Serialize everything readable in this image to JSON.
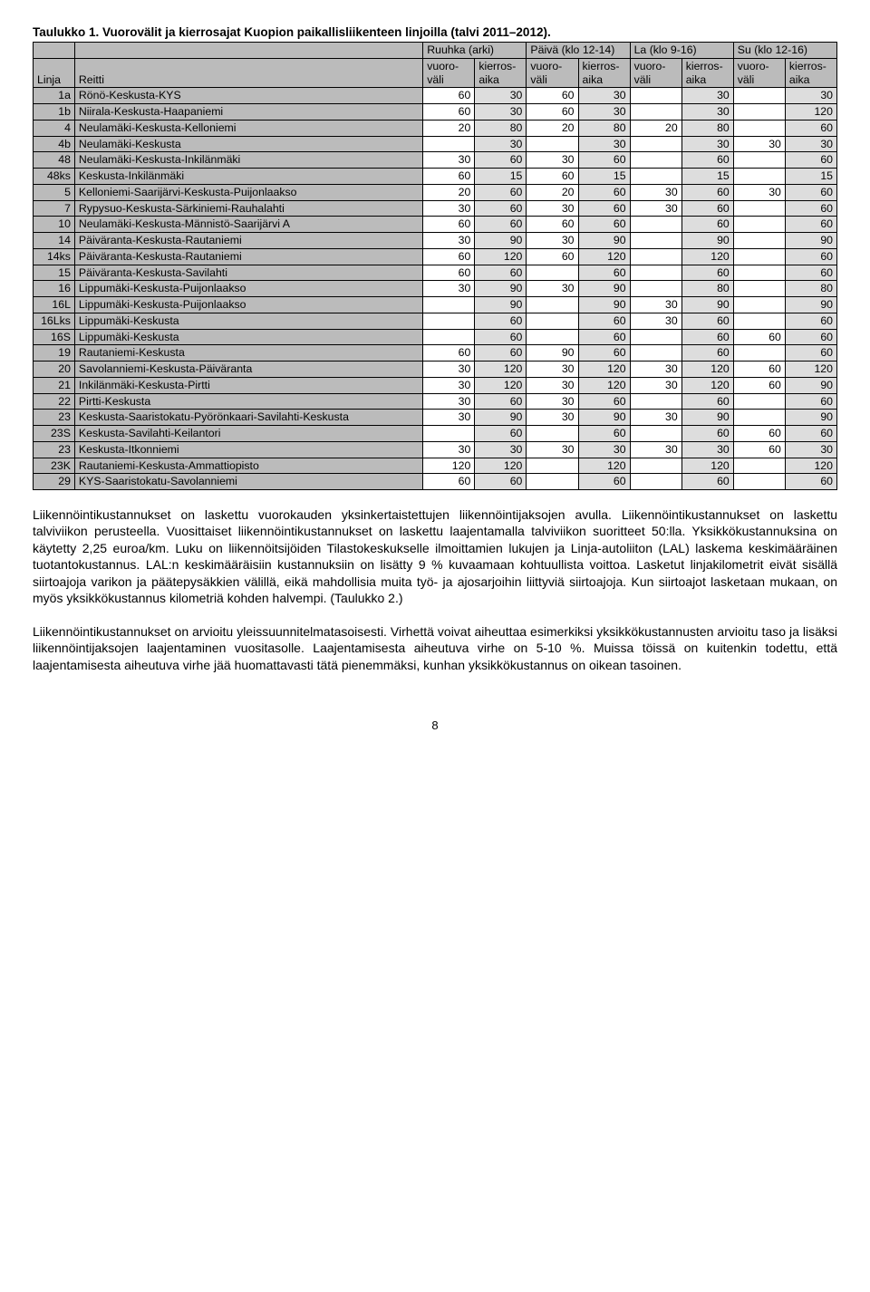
{
  "title": "Taulukko 1. Vuorovälit ja kierrosajat Kuopion paikallisliikenteen linjoilla (talvi 2011–2012).",
  "groupHeaders": [
    "Ruuhka (arki)",
    "Päivä (klo 12-14)",
    "La (klo 9-16)",
    "Su (klo 12-16)"
  ],
  "subHeaders": {
    "linja": "Linja",
    "reitti": "Reitti",
    "vuoro": "vuoro-väli",
    "kierros": "kierros-aika"
  },
  "colors": {
    "headerBg": "#bbbbbb",
    "evenCol": "#dddddd",
    "oddCol": "#ffffff",
    "border": "#000000"
  },
  "rows": [
    {
      "linja": "1a",
      "reitti": "Rönö-Keskusta-KYS",
      "v": [
        60,
        30,
        60,
        30,
        "",
        30,
        "",
        30
      ]
    },
    {
      "linja": "1b",
      "reitti": "Niirala-Keskusta-Haapaniemi",
      "v": [
        60,
        30,
        60,
        30,
        "",
        30,
        "",
        120
      ]
    },
    {
      "linja": "4",
      "reitti": "Neulamäki-Keskusta-Kelloniemi",
      "v": [
        20,
        80,
        20,
        80,
        20,
        80,
        "",
        60
      ]
    },
    {
      "linja": "4b",
      "reitti": "Neulamäki-Keskusta",
      "v": [
        "",
        30,
        "",
        30,
        "",
        30,
        30,
        30
      ]
    },
    {
      "linja": "48",
      "reitti": "Neulamäki-Keskusta-Inkilänmäki",
      "v": [
        30,
        60,
        30,
        60,
        "",
        60,
        "",
        60
      ]
    },
    {
      "linja": "48ks",
      "reitti": "Keskusta-Inkilänmäki",
      "v": [
        60,
        15,
        60,
        15,
        "",
        15,
        "",
        15
      ]
    },
    {
      "linja": "5",
      "reitti": "Kelloniemi-Saarijärvi-Keskusta-Puijonlaakso",
      "v": [
        20,
        60,
        20,
        60,
        30,
        60,
        30,
        60
      ]
    },
    {
      "linja": "7",
      "reitti": "Rypysuo-Keskusta-Särkiniemi-Rauhalahti",
      "v": [
        30,
        60,
        30,
        60,
        30,
        60,
        "",
        60
      ]
    },
    {
      "linja": "10",
      "reitti": "Neulamäki-Keskusta-Männistö-Saarijärvi A",
      "v": [
        60,
        60,
        60,
        60,
        "",
        60,
        "",
        60
      ]
    },
    {
      "linja": "14",
      "reitti": "Päiväranta-Keskusta-Rautaniemi",
      "v": [
        30,
        90,
        30,
        90,
        "",
        90,
        "",
        90
      ]
    },
    {
      "linja": "14ks",
      "reitti": "Päiväranta-Keskusta-Rautaniemi",
      "v": [
        60,
        120,
        60,
        120,
        "",
        120,
        "",
        60
      ]
    },
    {
      "linja": "15",
      "reitti": "Päiväranta-Keskusta-Savilahti",
      "v": [
        60,
        60,
        "",
        60,
        "",
        60,
        "",
        60
      ]
    },
    {
      "linja": "16",
      "reitti": "Lippumäki-Keskusta-Puijonlaakso",
      "v": [
        30,
        90,
        30,
        90,
        "",
        80,
        "",
        80
      ]
    },
    {
      "linja": "16L",
      "reitti": "Lippumäki-Keskusta-Puijonlaakso",
      "v": [
        "",
        90,
        "",
        90,
        30,
        90,
        "",
        90
      ]
    },
    {
      "linja": "16Lks",
      "reitti": "Lippumäki-Keskusta",
      "v": [
        "",
        60,
        "",
        60,
        30,
        60,
        "",
        60
      ]
    },
    {
      "linja": "16S",
      "reitti": "Lippumäki-Keskusta",
      "v": [
        "",
        60,
        "",
        60,
        "",
        60,
        60,
        60
      ]
    },
    {
      "linja": "19",
      "reitti": "Rautaniemi-Keskusta",
      "v": [
        60,
        60,
        90,
        60,
        "",
        60,
        "",
        60
      ]
    },
    {
      "linja": "20",
      "reitti": "Savolanniemi-Keskusta-Päiväranta",
      "v": [
        30,
        120,
        30,
        120,
        30,
        120,
        60,
        120
      ]
    },
    {
      "linja": "21",
      "reitti": "Inkilänmäki-Keskusta-Pirtti",
      "v": [
        30,
        120,
        30,
        120,
        30,
        120,
        60,
        90
      ]
    },
    {
      "linja": "22",
      "reitti": "Pirtti-Keskusta",
      "v": [
        30,
        60,
        30,
        60,
        "",
        60,
        "",
        60
      ]
    },
    {
      "linja": "23",
      "reitti": "Keskusta-Saaristokatu-Pyörönkaari-Savilahti-Keskusta",
      "v": [
        30,
        90,
        30,
        90,
        30,
        90,
        "",
        90
      ]
    },
    {
      "linja": "23S",
      "reitti": "Keskusta-Savilahti-Keilantori",
      "v": [
        "",
        60,
        "",
        60,
        "",
        60,
        60,
        60
      ]
    },
    {
      "linja": "23",
      "reitti": "Keskusta-Itkonniemi",
      "v": [
        30,
        30,
        30,
        30,
        30,
        30,
        60,
        30
      ]
    },
    {
      "linja": "23K",
      "reitti": "Rautaniemi-Keskusta-Ammattiopisto",
      "v": [
        120,
        120,
        "",
        120,
        "",
        120,
        "",
        120
      ]
    },
    {
      "linja": "29",
      "reitti": "KYS-Saaristokatu-Savolanniemi",
      "v": [
        60,
        60,
        "",
        60,
        "",
        60,
        "",
        60
      ]
    }
  ],
  "para1": "Liikennöintikustannukset on laskettu vuorokauden yksinkertaistettujen liikennöintijaksojen avulla. Liikennöintikustannukset on laskettu talviviikon perusteella. Vuosittaiset liikennöintikustannukset on laskettu laajentamalla talviviikon suoritteet 50:lla. Yksikkökustannuksina on käytetty 2,25 euroa/km. Luku on liikennöitsijöiden Tilastokeskukselle ilmoittamien lukujen ja Linja-autoliiton (LAL) laskema keskimääräinen tuotantokustannus. LAL:n keskimääräisiin kustannuksiin on lisätty 9 % kuvaamaan kohtuullista voittoa. Lasketut linjakilometrit eivät sisällä siirtoajoja varikon ja päätepysäkkien välillä, eikä mahdollisia muita työ- ja ajosarjoihin liittyviä siirtoajoja. Kun siirtoajot lasketaan mukaan, on myös yksikkökustannus kilometriä kohden halvempi. (Taulukko 2.)",
  "para2": "Liikennöintikustannukset on arvioitu yleissuunnitelmatasoisesti. Virhettä voivat aiheuttaa esimerkiksi yksikkökustannusten arvioitu taso ja lisäksi liikennöintijaksojen laajentaminen vuositasolle. Laajentamisesta aiheutuva virhe on 5-10 %. Muissa töissä on kuitenkin todettu, että laajentamisesta aiheutuva virhe jää huomattavasti tätä pienemmäksi, kunhan yksikkökustannus on oikean tasoinen.",
  "pageNumber": "8"
}
